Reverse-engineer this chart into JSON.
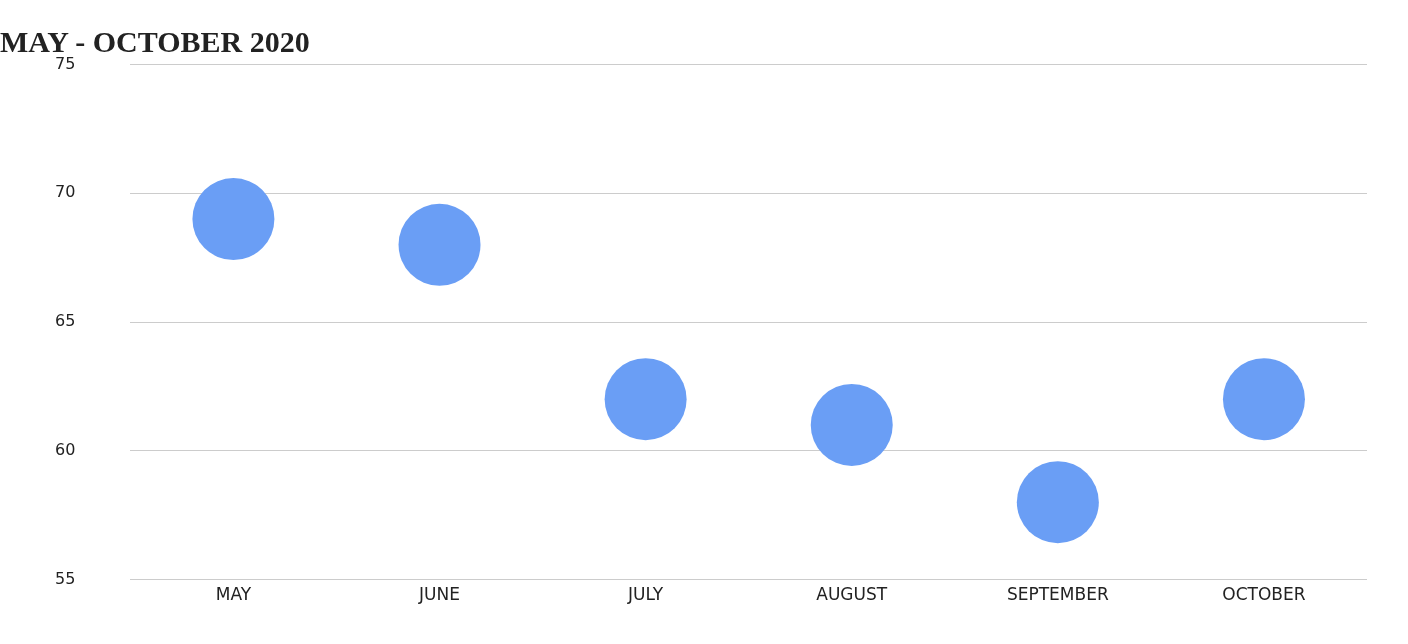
{
  "chart_data": {
    "type": "scatter",
    "title": "MAY - OCTOBER 2020",
    "categories": [
      "MAY",
      "JUNE",
      "JULY",
      "AUGUST",
      "SEPTEMBER",
      "OCTOBER"
    ],
    "series": [
      {
        "color": "#6a9ef5",
        "values": [
          69,
          68,
          62,
          61,
          58,
          62
        ]
      }
    ],
    "ylim": [
      55,
      75
    ],
    "yticks": [
      55,
      60,
      65,
      70,
      75
    ],
    "grid": "y",
    "legend": false,
    "marker": "circle"
  }
}
